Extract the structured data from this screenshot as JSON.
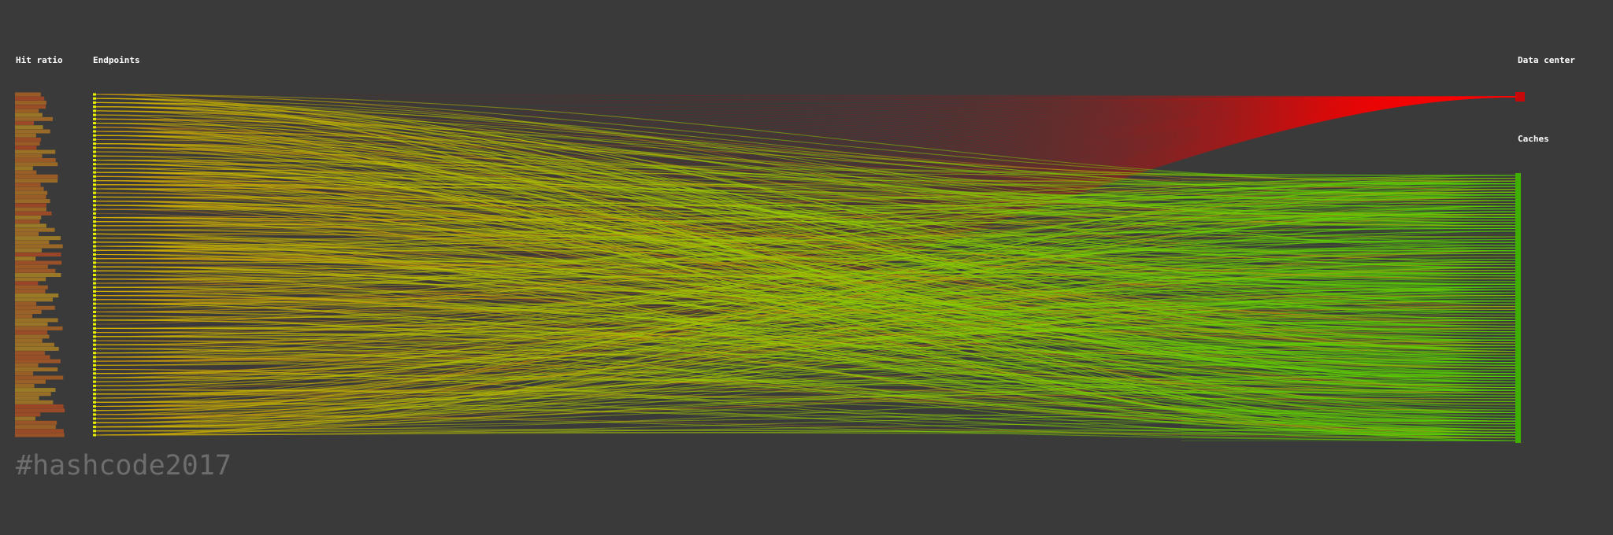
{
  "labels": {
    "hit_ratio": "Hit ratio",
    "endpoints": "Endpoints",
    "data_center": "Data center",
    "caches": "Caches"
  },
  "footer": {
    "hashtag": "#hashcode2017"
  },
  "colors": {
    "background": "#3a3a3a",
    "data_center_link": "#e00000",
    "cache_link": "#5fd400",
    "endpoint_node": "#e6f000",
    "cache_node": "#3fae00",
    "hit_low": "#d94a1a",
    "hit_high": "#d9a51a",
    "hashtag_text": "#6d6d6d"
  },
  "diagram": {
    "endpoint_count": 84,
    "cache_count": 96,
    "data_center_count": 1
  }
}
